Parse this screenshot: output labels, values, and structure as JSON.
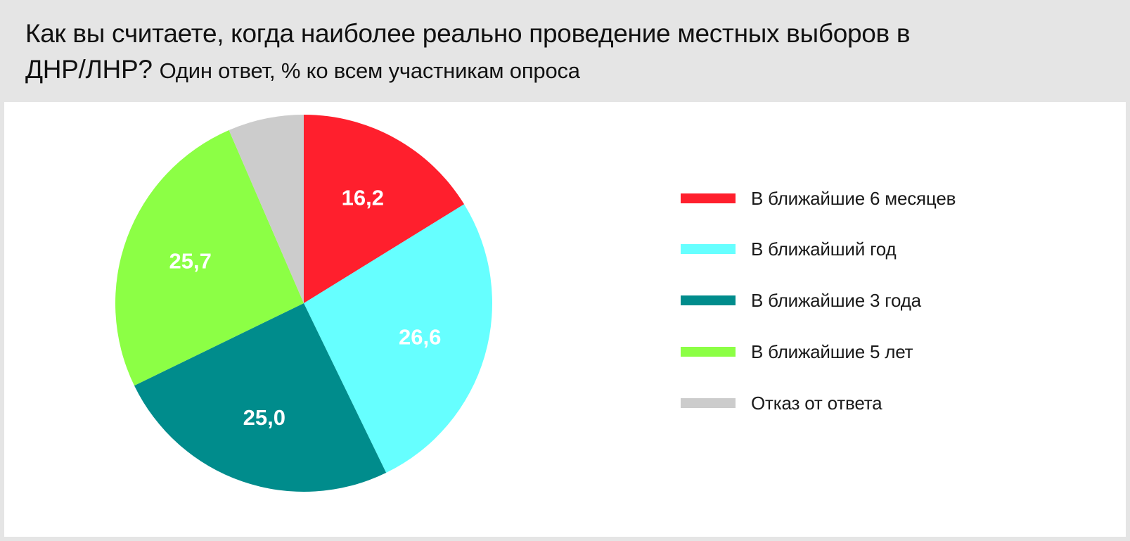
{
  "header": {
    "title_line1": "Как вы считаете, когда наиболее реально проведение местных выборов в",
    "title_line2": "ДНР/ЛНР?",
    "subtitle": "Один ответ, % ко всем участникам опроса"
  },
  "chart_data": {
    "type": "pie",
    "start_angle_deg": 0,
    "direction": "clockwise",
    "legend_position": "right",
    "series": [
      {
        "name": "В ближайшие 6 месяцев",
        "value": 16.2,
        "label": "16,2",
        "color": "#ff1f2d"
      },
      {
        "name": "В ближайший год",
        "value": 26.6,
        "label": "26,6",
        "color": "#66ffff"
      },
      {
        "name": "В ближайшие 3 года",
        "value": 25.0,
        "label": "25,0",
        "color": "#008c8c"
      },
      {
        "name": "В ближайшие 5 лет",
        "value": 25.7,
        "label": "25,7",
        "color": "#8cff45"
      },
      {
        "name": "Отказ от ответа",
        "value": 6.5,
        "label": "",
        "color": "#cccccc"
      }
    ]
  }
}
